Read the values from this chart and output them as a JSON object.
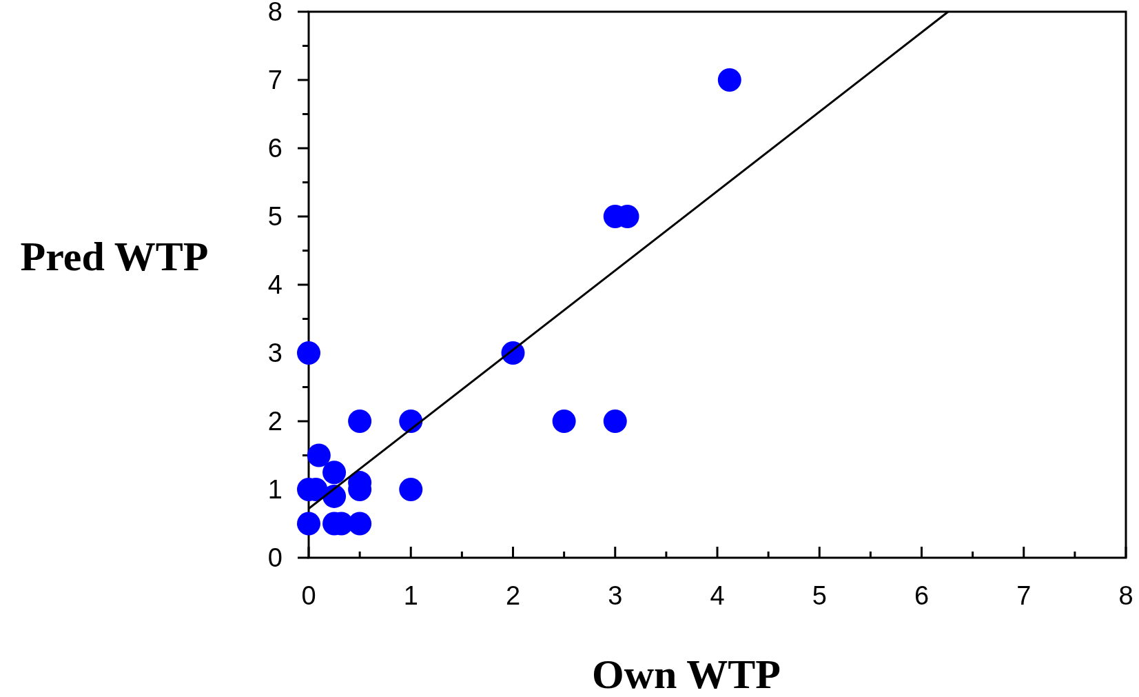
{
  "chart_data": {
    "type": "scatter",
    "xlabel": "Own WTP",
    "ylabel": "Pred WTP",
    "xlim": [
      0,
      8
    ],
    "ylim": [
      0,
      8
    ],
    "xticks": [
      0,
      {
        "value": 0.5,
        "label": null
      },
      1,
      {
        "value": 1.5,
        "label": null
      },
      2,
      {
        "value": 2.5,
        "label": null
      },
      3,
      {
        "value": 3.5,
        "label": null
      },
      4,
      {
        "value": 4.5,
        "label": null
      },
      5,
      {
        "value": 5.5,
        "label": null
      },
      6,
      {
        "value": 6.5,
        "label": null
      },
      7,
      {
        "value": 7.5,
        "label": null
      },
      8
    ],
    "yticks": [
      0,
      {
        "value": 0.5,
        "label": null
      },
      1,
      {
        "value": 1.5,
        "label": null
      },
      2,
      {
        "value": 2.5,
        "label": null
      },
      3,
      {
        "value": 3.5,
        "label": null
      },
      4,
      {
        "value": 4.5,
        "label": null
      },
      5,
      {
        "value": 5.5,
        "label": null
      },
      6,
      {
        "value": 6.5,
        "label": null
      },
      7,
      {
        "value": 7.5,
        "label": null
      },
      8
    ],
    "grid": false,
    "marker": "circle",
    "series": [
      {
        "color": "#0000ff",
        "x": [
          0,
          0,
          0.07,
          0,
          0.1,
          0.25,
          0.25,
          0.25,
          0.32,
          0.5,
          0.5,
          0.5,
          0.5,
          1,
          1,
          2,
          2.5,
          3,
          3,
          3.12,
          4.12
        ],
        "values": [
          3,
          1,
          1,
          0.5,
          1.5,
          1.25,
          0.9,
          0.5,
          0.5,
          2,
          1.1,
          1,
          0.5,
          2,
          1,
          3,
          2,
          2,
          5,
          5,
          7
        ]
      },
      {
        "type": "line",
        "color": "#000000",
        "x": [
          0,
          6.26
        ],
        "values": [
          0.72,
          8
        ],
        "marker": "none"
      }
    ]
  }
}
